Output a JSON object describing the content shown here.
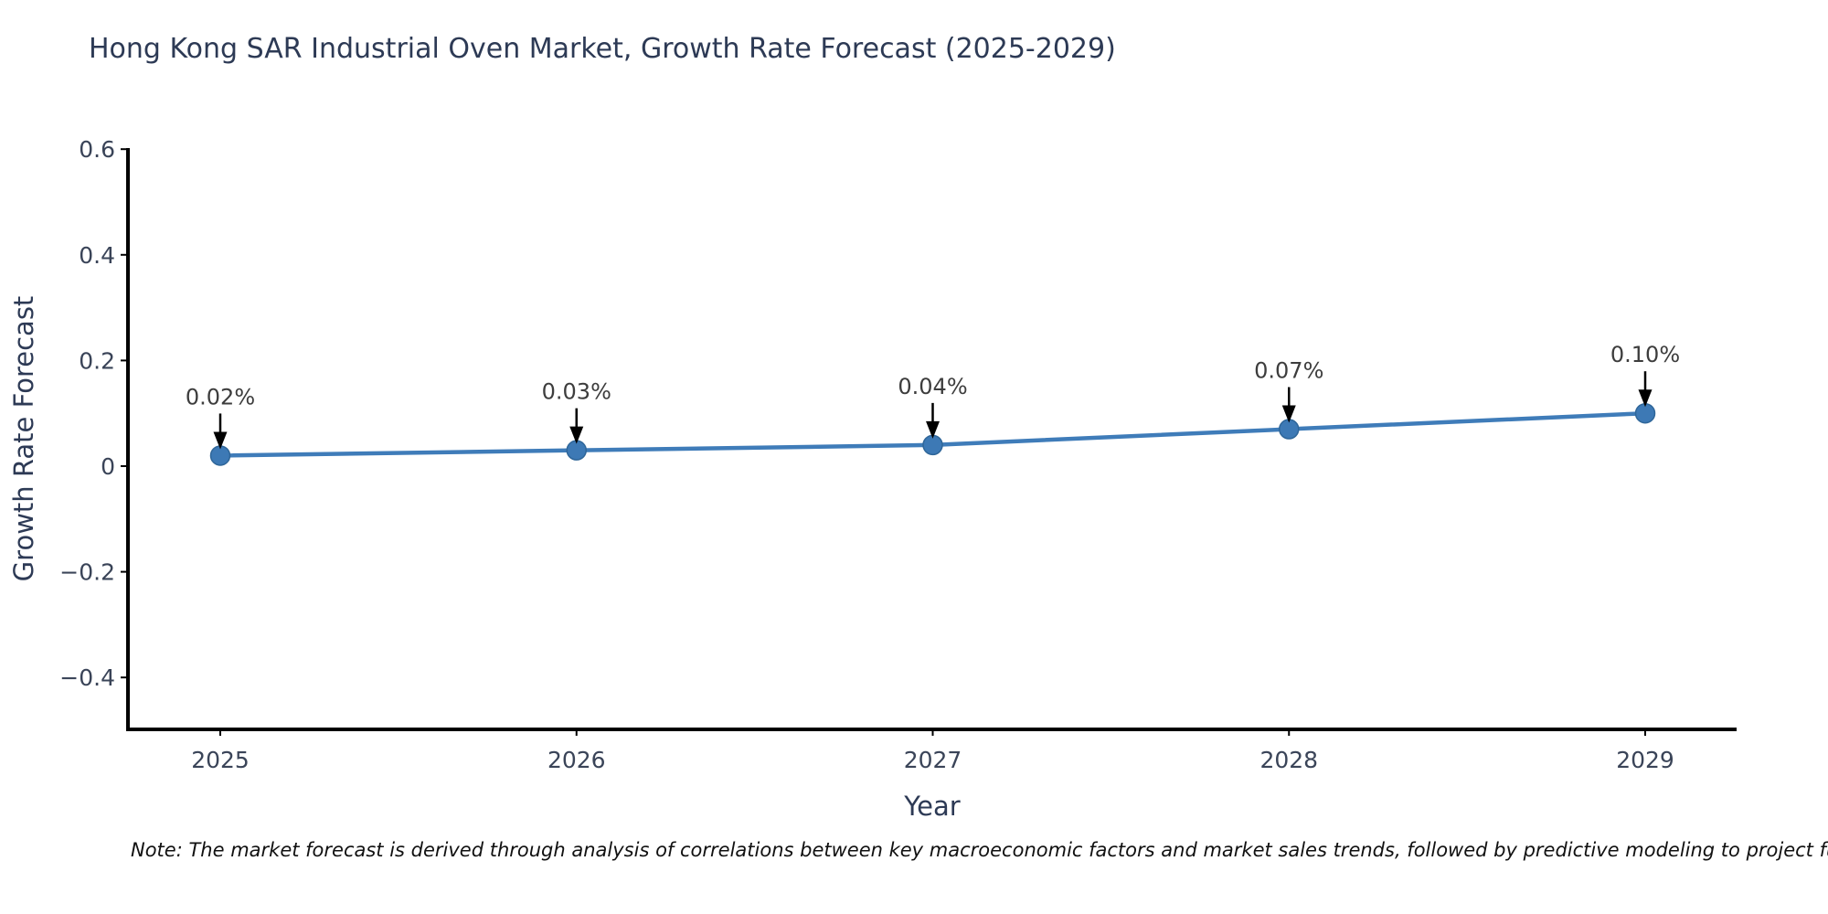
{
  "note": "Note: The market forecast is derived through analysis of correlations between key macroeconomic factors and market sales trends, followed by predictive modeling to project future sales.",
  "chart_data": {
    "type": "line",
    "title": "Hong Kong SAR Industrial Oven Market, Growth Rate Forecast (2025-2029)",
    "xlabel": "Year",
    "ylabel": "Growth Rate Forecast",
    "categories": [
      "2025",
      "2026",
      "2027",
      "2028",
      "2029"
    ],
    "series": [
      {
        "name": "Growth Rate Forecast",
        "values": [
          0.02,
          0.03,
          0.04,
          0.07,
          0.1
        ]
      }
    ],
    "point_labels": [
      "0.02%",
      "0.03%",
      "0.04%",
      "0.07%",
      "0.10%"
    ],
    "y_ticks": [
      0.6,
      0.4,
      0.2,
      0,
      -0.2,
      -0.4
    ],
    "y_tick_labels": [
      "0.6",
      "0.4",
      "0.2",
      "0",
      "−0.2",
      "−0.4"
    ],
    "ylim": [
      -0.5,
      0.6
    ],
    "grid": false,
    "legend": "none",
    "annotation_style": "value label above point with downward black arrow",
    "colors": {
      "line": "#3f7cb9",
      "marker": "#3d79b5",
      "marker_edge": "#2f6699",
      "spine": "#000000",
      "tick_text": "#3a4458",
      "label_text": "#2d3a55",
      "annotation_text": "#3d3d3d",
      "arrow": "#000000",
      "note_text": "#111111"
    }
  }
}
